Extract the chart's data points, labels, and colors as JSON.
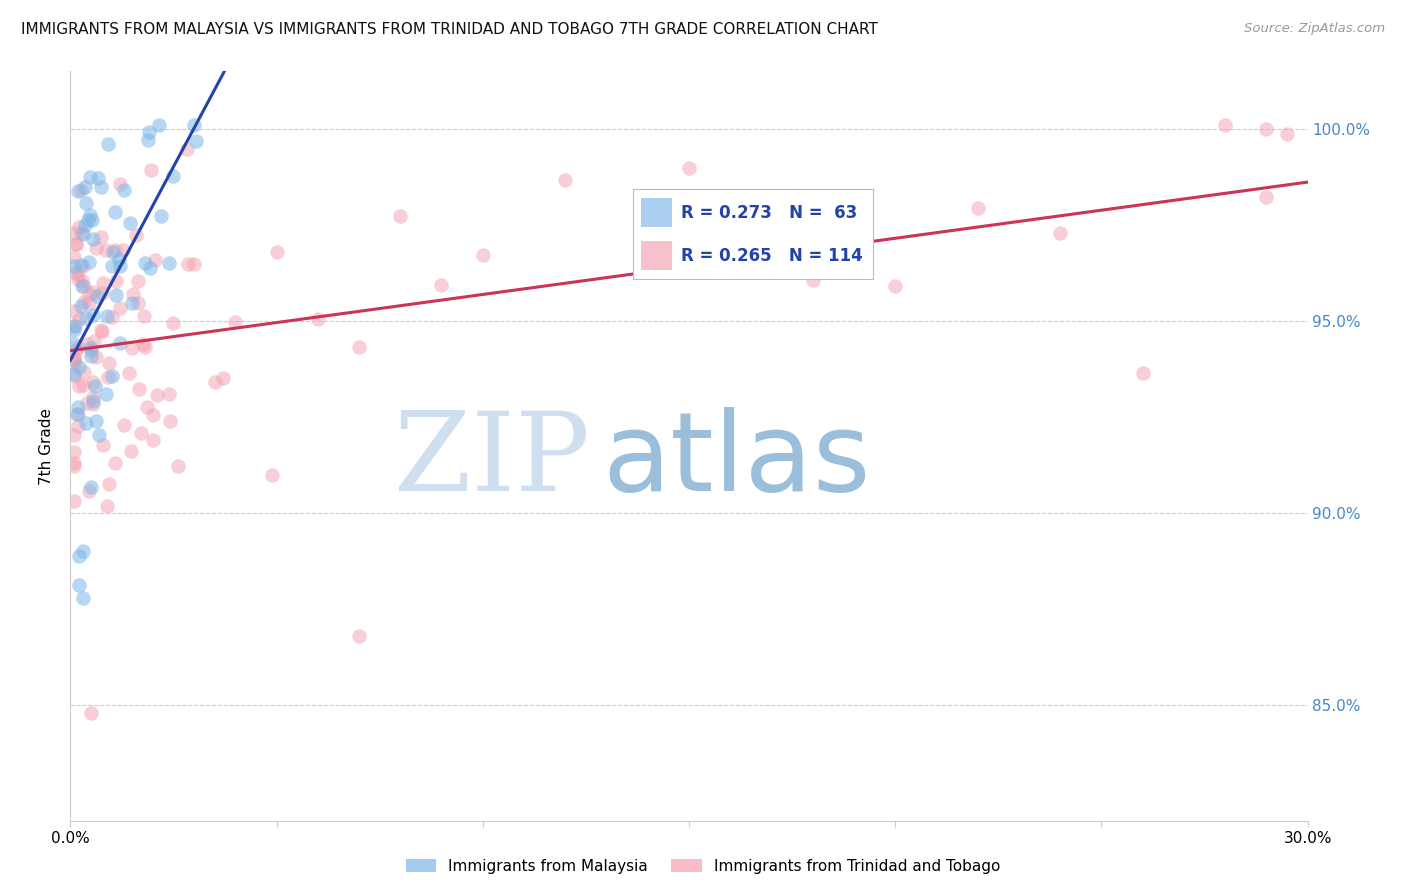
{
  "title": "IMMIGRANTS FROM MALAYSIA VS IMMIGRANTS FROM TRINIDAD AND TOBAGO 7TH GRADE CORRELATION CHART",
  "source": "Source: ZipAtlas.com",
  "ylabel": "7th Grade",
  "xlim": [
    0.0,
    0.3
  ],
  "ylim": [
    0.82,
    1.015
  ],
  "yticks": [
    0.85,
    0.9,
    0.95,
    1.0
  ],
  "ytick_labels": [
    "85.0%",
    "90.0%",
    "95.0%",
    "100.0%"
  ],
  "color_blue": "#7EB6E8",
  "color_pink": "#F4A0B0",
  "trendline_blue": "#2244AA",
  "trendline_pink": "#CC3355",
  "watermark_zip_color": "#D0DFF0",
  "watermark_atlas_color": "#90B8D8",
  "legend_label1": "Immigrants from Malaysia",
  "legend_label2": "Immigrants from Trinidad and Tobago",
  "legend_r1": "R = 0.273",
  "legend_n1": "N =  63",
  "legend_r2": "R = 0.265",
  "legend_n2": "N = 114",
  "legend_text_color": "#2244AA",
  "right_tick_color": "#4488CC",
  "source_color": "#999999"
}
